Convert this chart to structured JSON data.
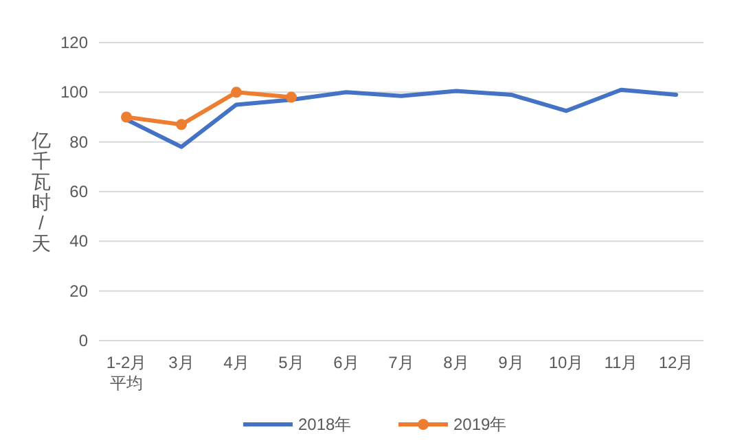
{
  "chart_data": {
    "type": "line",
    "ylabel": "亿千瓦时/天",
    "categories": [
      "1-2月平均",
      "3月",
      "4月",
      "5月",
      "6月",
      "7月",
      "8月",
      "9月",
      "10月",
      "11月",
      "12月"
    ],
    "series": [
      {
        "name": "2018年",
        "color": "#4472c4",
        "values": [
          89,
          78,
          95,
          97,
          100,
          98.5,
          100.5,
          99,
          92.5,
          101,
          99
        ],
        "marker": "none"
      },
      {
        "name": "2019年",
        "color": "#ed7d31",
        "values": [
          90,
          87,
          100,
          98,
          null,
          null,
          null,
          null,
          null,
          null,
          null
        ],
        "marker": "circle"
      }
    ],
    "ylim": [
      0,
      120
    ],
    "yticks": [
      0,
      20,
      40,
      60,
      80,
      100,
      120
    ],
    "grid": "y",
    "legend": "bottom"
  }
}
